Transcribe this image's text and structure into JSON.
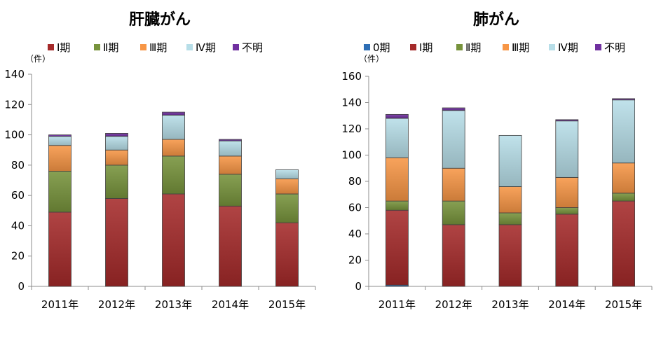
{
  "chart_data": [
    {
      "type": "bar",
      "stacked": true,
      "title": "肝臓がん",
      "unit_label": "（件）",
      "categories": [
        "2011年",
        "2012年",
        "2013年",
        "2014年",
        "2015年"
      ],
      "ylim": [
        0,
        140
      ],
      "yticks": [
        0,
        20,
        40,
        60,
        80,
        100,
        120,
        140
      ],
      "grid": false,
      "legend": "top",
      "series": [
        {
          "name": "Ⅰ期",
          "color": "#a52a2a",
          "values": [
            49,
            58,
            61,
            53,
            42
          ]
        },
        {
          "name": "Ⅱ期",
          "color": "#77933c",
          "values": [
            27,
            22,
            25,
            21,
            19
          ]
        },
        {
          "name": "Ⅲ期",
          "color": "#f79646",
          "values": [
            17,
            10,
            11,
            12,
            10
          ]
        },
        {
          "name": "Ⅳ期",
          "color": "#b7dee8",
          "values": [
            6,
            9,
            16,
            10,
            6
          ]
        },
        {
          "name": "不明",
          "color": "#7030a0",
          "values": [
            1,
            2,
            2,
            1,
            0
          ]
        }
      ]
    },
    {
      "type": "bar",
      "stacked": true,
      "title": "肺がん",
      "unit_label": "（件）",
      "categories": [
        "2011年",
        "2012年",
        "2013年",
        "2014年",
        "2015年"
      ],
      "ylim": [
        0,
        160
      ],
      "yticks": [
        0,
        20,
        40,
        60,
        80,
        100,
        120,
        140,
        160
      ],
      "grid": false,
      "legend": "top",
      "series": [
        {
          "name": "0期",
          "color": "#2e6eb5",
          "values": [
            1,
            0,
            0,
            0,
            0
          ]
        },
        {
          "name": "Ⅰ期",
          "color": "#a52a2a",
          "values": [
            57,
            47,
            47,
            55,
            65
          ]
        },
        {
          "name": "Ⅱ期",
          "color": "#77933c",
          "values": [
            7,
            18,
            9,
            5,
            6
          ]
        },
        {
          "name": "Ⅲ期",
          "color": "#f79646",
          "values": [
            33,
            25,
            20,
            23,
            23
          ]
        },
        {
          "name": "Ⅳ期",
          "color": "#b7dee8",
          "values": [
            30,
            44,
            39,
            43,
            48
          ]
        },
        {
          "name": "不明",
          "color": "#7030a0",
          "values": [
            3,
            2,
            0,
            1,
            1
          ]
        }
      ]
    }
  ]
}
